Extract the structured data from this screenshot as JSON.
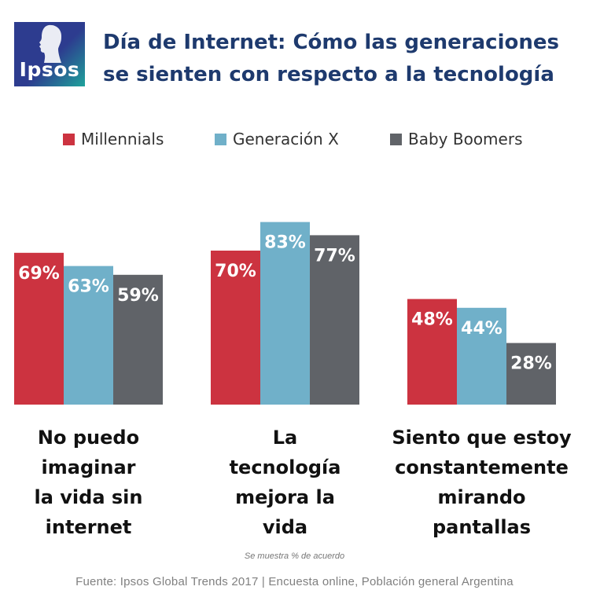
{
  "logo": {
    "text": "Ipsos"
  },
  "title": {
    "line1": "Día de Internet: Cómo las generaciones",
    "line2": "se sienten con respecto a la tecnología"
  },
  "chart_data": {
    "type": "bar",
    "title": "Día de Internet: Cómo las generaciones se sienten con respecto a la tecnología",
    "categories": [
      [
        "No puedo",
        "imaginar",
        "la vida sin",
        "internet"
      ],
      [
        "La",
        "tecnología",
        "mejora la",
        "vida"
      ],
      [
        "Siento que estoy",
        "constantemente",
        "mirando",
        "pantallas"
      ]
    ],
    "series": [
      {
        "name": "Millennials",
        "color": "#cc3340",
        "values": [
          69,
          70,
          48
        ]
      },
      {
        "name": "Generación X",
        "color": "#70b0c9",
        "values": [
          63,
          83,
          44
        ]
      },
      {
        "name": "Baby Boomers",
        "color": "#606368",
        "values": [
          59,
          77,
          28
        ]
      }
    ],
    "value_suffix": "%",
    "ylim": [
      0,
      100
    ],
    "grid": false,
    "legend": "top",
    "xlabel": "",
    "ylabel": ""
  },
  "note": "Se muestra % de acuerdo",
  "source": "Fuente: Ipsos Global Trends 2017  | Encuesta online,  Población general Argentina"
}
